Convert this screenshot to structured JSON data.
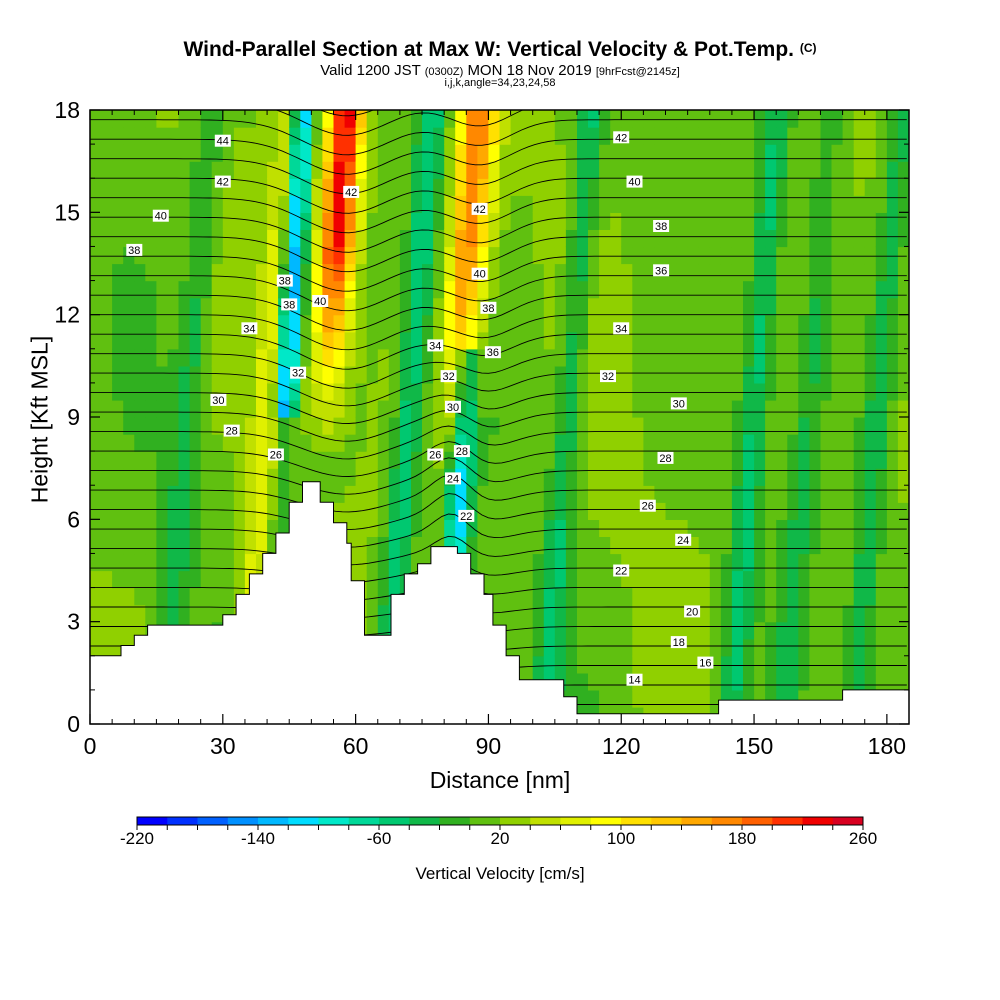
{
  "title": {
    "main": "Wind-Parallel Section at Max W: Vertical Velocity & Pot.Temp.",
    "copyright": "(C)"
  },
  "subtitle": {
    "valid": "Valid 1200 JST",
    "utc": "(0300Z)",
    "date": "MON 18 Nov 2019",
    "fcst": "[9hrFcst@2145z]"
  },
  "params": "i,j,k,angle=34,23,24,58",
  "chart_data": {
    "type": "heatmap",
    "xlabel": "Distance [nm]",
    "ylabel": "Height [Kft MSL]",
    "xlim": [
      0,
      185
    ],
    "ylim": [
      0,
      18
    ],
    "x_ticks": [
      "0",
      "30",
      "60",
      "90",
      "120",
      "150",
      "180"
    ],
    "y_ticks": [
      "0",
      "3",
      "6",
      "9",
      "12",
      "15",
      "18"
    ],
    "colorbar": {
      "label": "Vertical Velocity [cm/s]",
      "range": [
        -220,
        260
      ],
      "step": 20,
      "tick_labels": [
        "-220",
        "-140",
        "-60",
        "20",
        "100",
        "180",
        "260"
      ],
      "colors": [
        "#0000ff",
        "#0030ff",
        "#0060ff",
        "#0090ff",
        "#00b8ff",
        "#00dcff",
        "#00e8c8",
        "#00d898",
        "#00c870",
        "#10b848",
        "#30b020",
        "#60c010",
        "#90d000",
        "#c0e000",
        "#e0f000",
        "#ffff00",
        "#ffe000",
        "#ffc800",
        "#ffa800",
        "#ff8800",
        "#ff6000",
        "#ff3000",
        "#f00000",
        "#d80020",
        "#c00040",
        "#a00060",
        "#800080",
        "#600090",
        "#5000a0"
      ]
    },
    "updraft_cores": [
      {
        "x": 58,
        "z": [
          12,
          18
        ],
        "w": 220
      },
      {
        "x": 88,
        "z": [
          11,
          18
        ],
        "w": 180
      }
    ],
    "downdraft_cores": [
      {
        "x": 48,
        "z": [
          10,
          18
        ],
        "w": -160
      },
      {
        "x": 85,
        "z": [
          5,
          10
        ],
        "w": -120
      }
    ],
    "terrain_nm_kft": [
      [
        0,
        2
      ],
      [
        7,
        2
      ],
      [
        7,
        2.3
      ],
      [
        10,
        2.3
      ],
      [
        10,
        2.6
      ],
      [
        13,
        2.6
      ],
      [
        13,
        2.9
      ],
      [
        30,
        2.9
      ],
      [
        30,
        3.2
      ],
      [
        33,
        3.2
      ],
      [
        33,
        3.8
      ],
      [
        36,
        3.8
      ],
      [
        36,
        4.4
      ],
      [
        39,
        4.4
      ],
      [
        39,
        5
      ],
      [
        42,
        5
      ],
      [
        42,
        5.6
      ],
      [
        45,
        5.6
      ],
      [
        45,
        6.5
      ],
      [
        48,
        6.5
      ],
      [
        48,
        7.1
      ],
      [
        52,
        7.1
      ],
      [
        52,
        6.5
      ],
      [
        55,
        6.5
      ],
      [
        55,
        5.9
      ],
      [
        58,
        5.9
      ],
      [
        58,
        5.3
      ],
      [
        59,
        5.3
      ],
      [
        59,
        4.2
      ],
      [
        62,
        4.2
      ],
      [
        62,
        2.6
      ],
      [
        67,
        2.6
      ],
      [
        67,
        2.6
      ],
      [
        68,
        2.6
      ],
      [
        68,
        3.8
      ],
      [
        71,
        3.8
      ],
      [
        71,
        4.4
      ],
      [
        74,
        4.4
      ],
      [
        74,
        4.7
      ],
      [
        77,
        4.7
      ],
      [
        77,
        5.2
      ],
      [
        83,
        5.2
      ],
      [
        83,
        5
      ],
      [
        86,
        5
      ],
      [
        86,
        4.4
      ],
      [
        89,
        4.4
      ],
      [
        89,
        3.8
      ],
      [
        91,
        3.8
      ],
      [
        91,
        2.9
      ],
      [
        94,
        2.9
      ],
      [
        94,
        2.0
      ],
      [
        97,
        2.0
      ],
      [
        97,
        1.3
      ],
      [
        107,
        1.3
      ],
      [
        107,
        0.8
      ],
      [
        110,
        0.8
      ],
      [
        110,
        0.3
      ],
      [
        142,
        0.3
      ],
      [
        142,
        0.7
      ],
      [
        155,
        0.7
      ],
      [
        155,
        0.7
      ],
      [
        170,
        0.7
      ],
      [
        170,
        1.0
      ],
      [
        185,
        1.0
      ]
    ],
    "contour_labels": [
      {
        "text": "44",
        "x": 30,
        "z": 17.1
      },
      {
        "text": "42",
        "x": 30,
        "z": 15.9
      },
      {
        "text": "40",
        "x": 16,
        "z": 14.9
      },
      {
        "text": "38",
        "x": 10,
        "z": 13.9
      },
      {
        "text": "38",
        "x": 44,
        "z": 13.0
      },
      {
        "text": "38",
        "x": 45,
        "z": 12.3
      },
      {
        "text": "40",
        "x": 52,
        "z": 12.4
      },
      {
        "text": "34",
        "x": 36,
        "z": 11.6
      },
      {
        "text": "32",
        "x": 47,
        "z": 10.3
      },
      {
        "text": "30",
        "x": 29,
        "z": 9.5
      },
      {
        "text": "28",
        "x": 32,
        "z": 8.6
      },
      {
        "text": "26",
        "x": 42,
        "z": 7.9
      },
      {
        "text": "42",
        "x": 59,
        "z": 15.6
      },
      {
        "text": "42",
        "x": 88,
        "z": 15.1
      },
      {
        "text": "40",
        "x": 88,
        "z": 13.2
      },
      {
        "text": "38",
        "x": 90,
        "z": 12.2
      },
      {
        "text": "36",
        "x": 91,
        "z": 10.9
      },
      {
        "text": "34",
        "x": 78,
        "z": 11.1
      },
      {
        "text": "32",
        "x": 81,
        "z": 10.2
      },
      {
        "text": "30",
        "x": 82,
        "z": 9.3
      },
      {
        "text": "28",
        "x": 84,
        "z": 8.0
      },
      {
        "text": "26",
        "x": 78,
        "z": 7.9
      },
      {
        "text": "24",
        "x": 82,
        "z": 7.2
      },
      {
        "text": "22",
        "x": 85,
        "z": 6.1
      },
      {
        "text": "42",
        "x": 120,
        "z": 17.2
      },
      {
        "text": "40",
        "x": 123,
        "z": 15.9
      },
      {
        "text": "38",
        "x": 129,
        "z": 14.6
      },
      {
        "text": "36",
        "x": 129,
        "z": 13.3
      },
      {
        "text": "34",
        "x": 120,
        "z": 11.6
      },
      {
        "text": "32",
        "x": 117,
        "z": 10.2
      },
      {
        "text": "30",
        "x": 133,
        "z": 9.4
      },
      {
        "text": "28",
        "x": 130,
        "z": 7.8
      },
      {
        "text": "26",
        "x": 126,
        "z": 6.4
      },
      {
        "text": "24",
        "x": 134,
        "z": 5.4
      },
      {
        "text": "22",
        "x": 120,
        "z": 4.5
      },
      {
        "text": "20",
        "x": 136,
        "z": 3.3
      },
      {
        "text": "18",
        "x": 133,
        "z": 2.4
      },
      {
        "text": "16",
        "x": 139,
        "z": 1.8
      },
      {
        "text": "14",
        "x": 123,
        "z": 1.3
      }
    ]
  }
}
